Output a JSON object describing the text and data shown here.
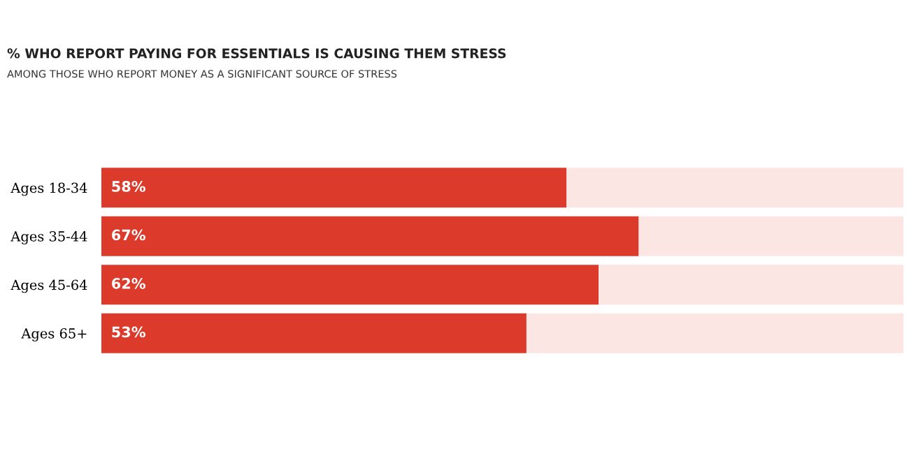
{
  "chart_data": {
    "type": "bar",
    "orientation": "horizontal",
    "stacked": true,
    "title": "% WHO REPORT PAYING FOR ESSENTIALS IS CAUSING THEM STRESS",
    "subtitle": "AMONG THOSE WHO REPORT MONEY AS A SIGNIFICANT SOURCE OF STRESS",
    "categories": [
      "Ages 18-34",
      "Ages 35-44",
      "Ages 45-64",
      "Ages 65+"
    ],
    "series": [
      {
        "color": "#dc3a2b",
        "values": [
          58,
          67,
          62,
          53
        ],
        "value_labels": [
          "58%",
          "67%",
          "62%",
          "53%"
        ]
      },
      {
        "color": "#fbe6e3",
        "values": [
          42,
          33,
          38,
          47
        ]
      }
    ],
    "xlim": [
      0,
      100
    ],
    "tick_labels": "y",
    "grid": false,
    "legend": false
  }
}
